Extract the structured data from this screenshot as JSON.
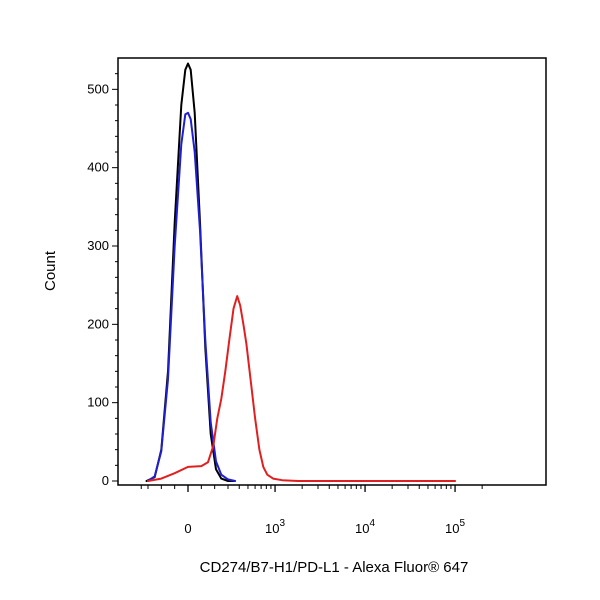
{
  "chart_data": {
    "type": "line",
    "xlabel": "CD274/B7-H1/PD-L1 - Alexa Fluor® 647",
    "ylabel": "Count",
    "ylim": [
      0,
      540
    ],
    "x_scale": "biexponential",
    "grid": false,
    "y_ticks": [
      {
        "value": 0,
        "label": "0"
      },
      {
        "value": 100,
        "label": "100"
      },
      {
        "value": 200,
        "label": "200"
      },
      {
        "value": 300,
        "label": "300"
      },
      {
        "value": 400,
        "label": "400"
      },
      {
        "value": 500,
        "label": "500"
      }
    ],
    "x_ticks": [
      {
        "value": 0,
        "base": "0",
        "exp": ""
      },
      {
        "value": 1000,
        "base": "10",
        "exp": "3"
      },
      {
        "value": 10000,
        "base": "10",
        "exp": "4"
      },
      {
        "value": 100000,
        "base": "10",
        "exp": "5"
      }
    ],
    "series": [
      {
        "color": "#000000",
        "points": [
          [
            -320,
            0
          ],
          [
            -250,
            5
          ],
          [
            -200,
            40
          ],
          [
            -150,
            140
          ],
          [
            -100,
            330
          ],
          [
            -50,
            480
          ],
          [
            -20,
            525
          ],
          [
            0,
            533
          ],
          [
            20,
            525
          ],
          [
            50,
            470
          ],
          [
            90,
            330
          ],
          [
            130,
            170
          ],
          [
            170,
            60
          ],
          [
            210,
            15
          ],
          [
            250,
            3
          ],
          [
            300,
            0
          ],
          [
            350,
            0
          ]
        ]
      },
      {
        "color": "#1f1fd0",
        "points": [
          [
            -300,
            0
          ],
          [
            -250,
            6
          ],
          [
            -200,
            38
          ],
          [
            -150,
            130
          ],
          [
            -100,
            300
          ],
          [
            -50,
            430
          ],
          [
            -20,
            468
          ],
          [
            0,
            470
          ],
          [
            20,
            462
          ],
          [
            50,
            420
          ],
          [
            90,
            320
          ],
          [
            130,
            180
          ],
          [
            170,
            75
          ],
          [
            210,
            25
          ],
          [
            250,
            8
          ],
          [
            300,
            2
          ],
          [
            360,
            0
          ]
        ]
      },
      {
        "color": "#e02020",
        "points": [
          [
            -300,
            0
          ],
          [
            -200,
            3
          ],
          [
            -100,
            10
          ],
          [
            0,
            18
          ],
          [
            100,
            19
          ],
          [
            150,
            24
          ],
          [
            190,
            45
          ],
          [
            220,
            80
          ],
          [
            250,
            105
          ],
          [
            280,
            140
          ],
          [
            310,
            180
          ],
          [
            345,
            220
          ],
          [
            380,
            236
          ],
          [
            410,
            224
          ],
          [
            445,
            200
          ],
          [
            480,
            175
          ],
          [
            540,
            125
          ],
          [
            600,
            80
          ],
          [
            670,
            40
          ],
          [
            740,
            18
          ],
          [
            820,
            8
          ],
          [
            950,
            3
          ],
          [
            1200,
            1
          ],
          [
            1800,
            0
          ],
          [
            100000,
            0
          ]
        ]
      }
    ]
  }
}
